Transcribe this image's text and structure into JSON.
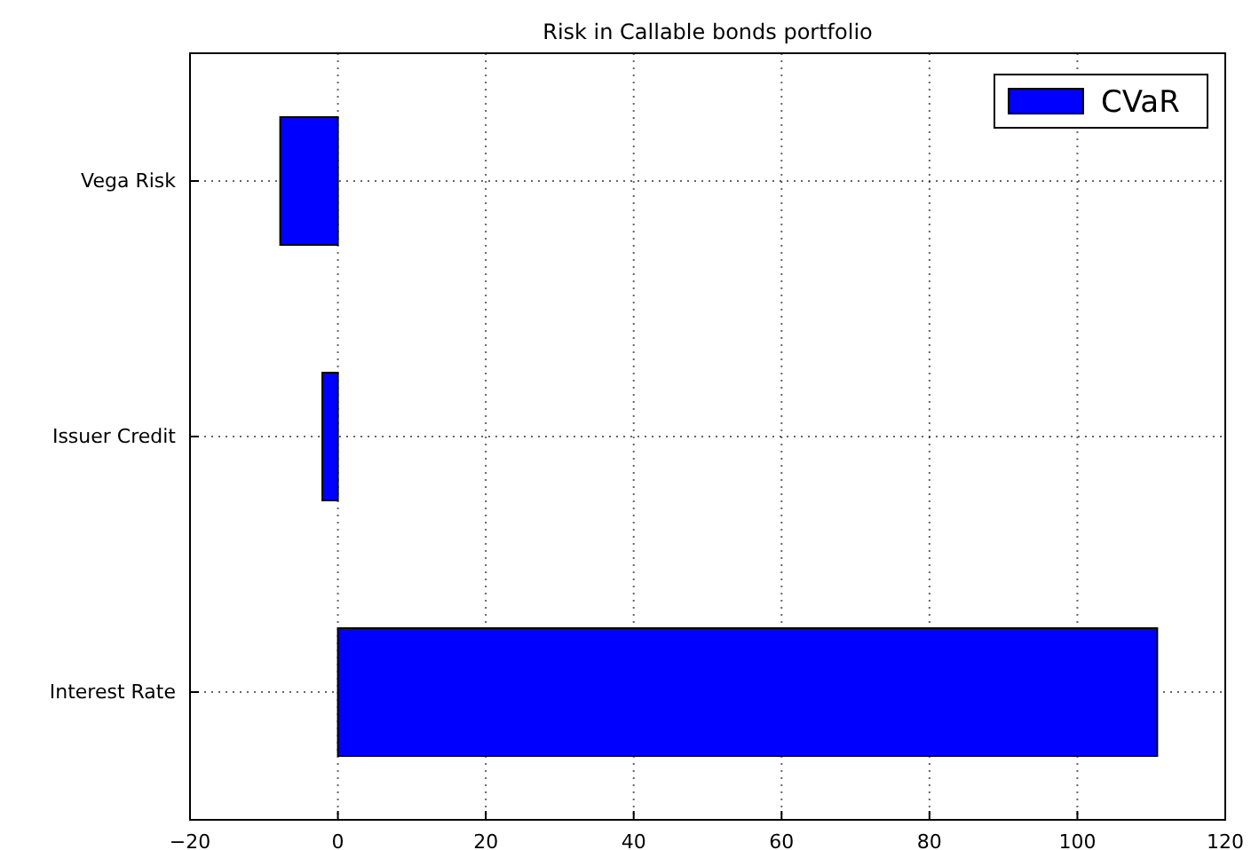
{
  "chart_data": {
    "type": "bar",
    "orientation": "horizontal",
    "title": "Risk in Callable bonds portfolio",
    "categories": [
      "Vega Risk",
      "Issuer Credit",
      "Interest Rate"
    ],
    "series": [
      {
        "name": "CVaR",
        "color": "#0000ff",
        "values": [
          -7.8,
          -2.1,
          110.8
        ]
      }
    ],
    "xlim": [
      -20,
      120
    ],
    "xticks": [
      -20,
      0,
      20,
      40,
      60,
      80,
      100,
      120
    ],
    "grid": true,
    "legend": "top right"
  }
}
